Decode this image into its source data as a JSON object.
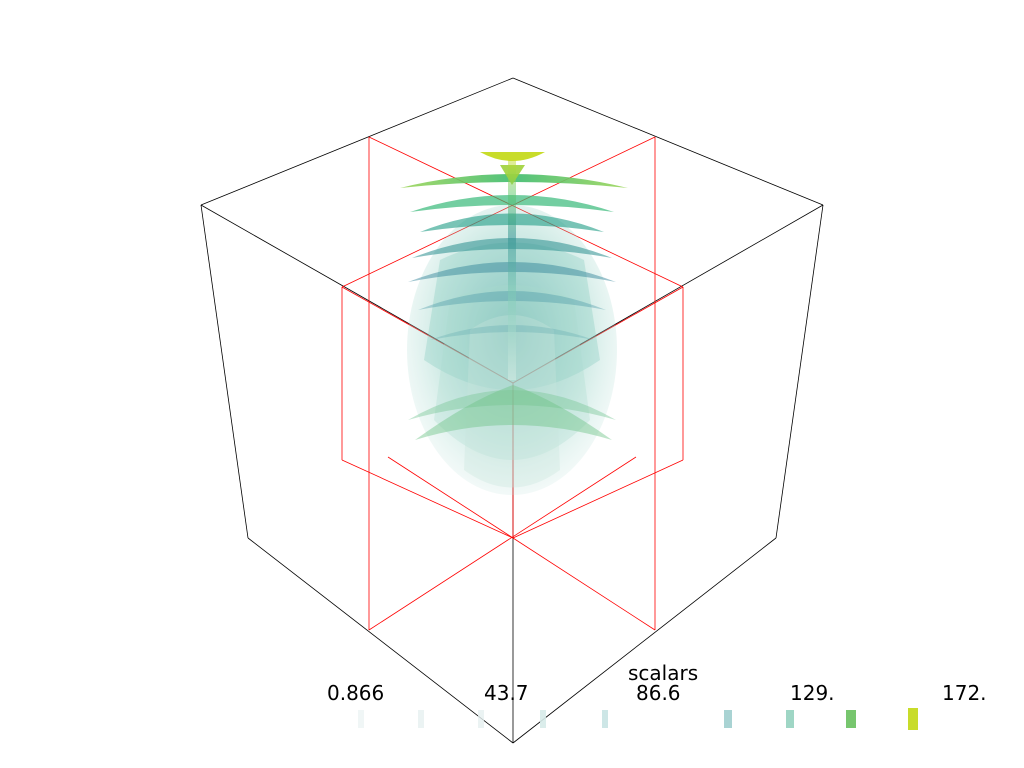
{
  "scalar_bar": {
    "title": "scalars",
    "ticks": [
      "0.866",
      "43.7",
      "86.6",
      "129.",
      "172."
    ],
    "colors": {
      "low": "#e6f0f0",
      "mid_low": "#a9d3d3",
      "mid": "#2a8e8e",
      "mid_high": "#2fb874",
      "high": "#c8dc2a"
    }
  },
  "outline": {
    "box_color": "#000000",
    "slice_color": "#ff0000"
  }
}
